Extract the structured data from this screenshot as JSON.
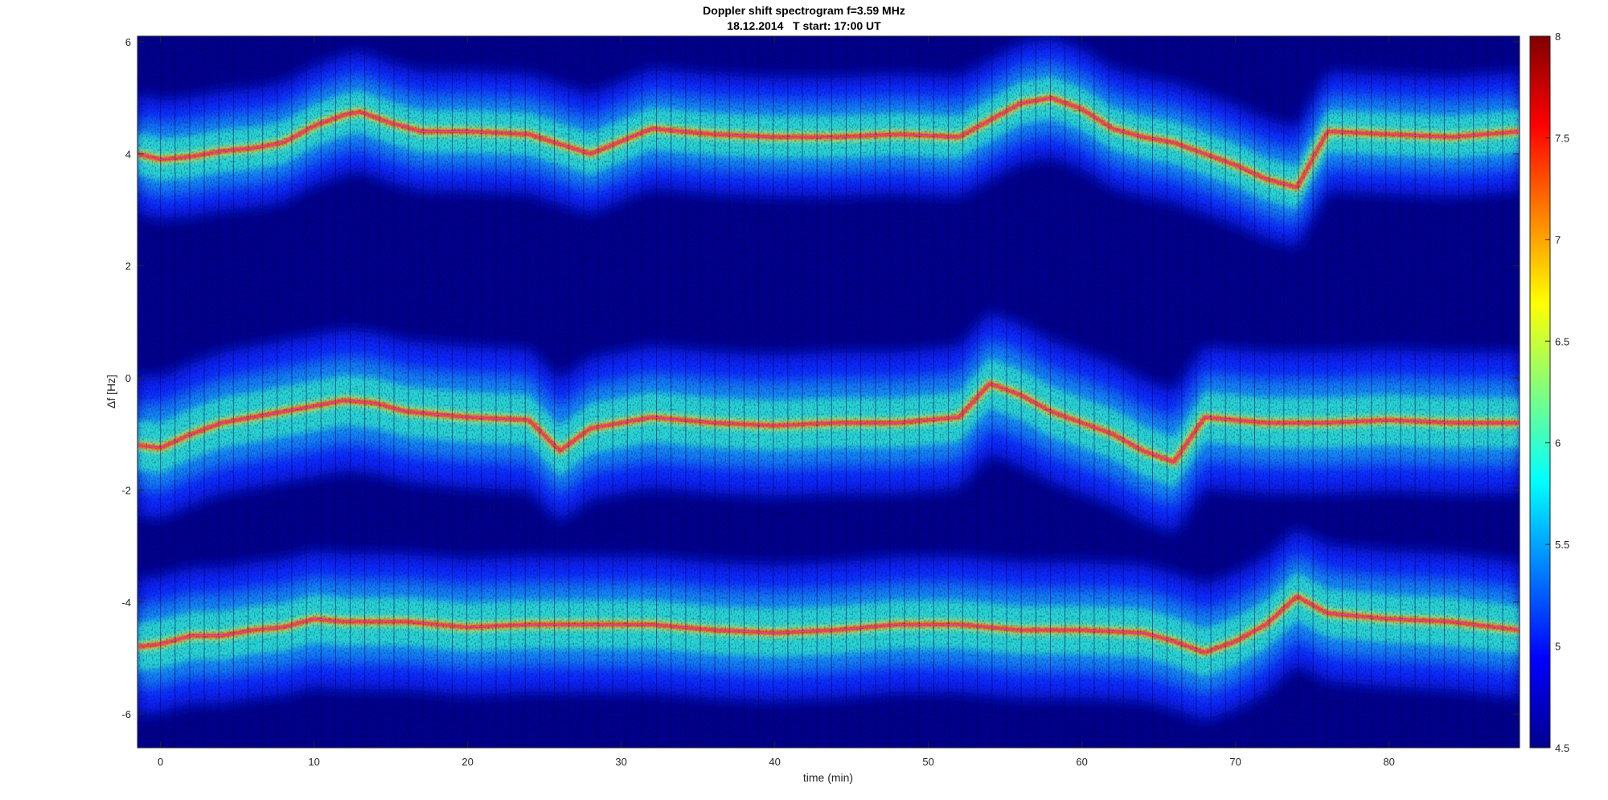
{
  "chart_data": {
    "type": "heatmap",
    "title": "Doppler shift spectrogram f=3.59 MHz",
    "subtitle": "18.12.2014   T start: 17:00 UT",
    "xlabel": "time (min)",
    "ylabel": "Δf [Hz]",
    "xlim": [
      -1.5,
      88.5
    ],
    "ylim": [
      -6.6,
      6.1
    ],
    "x_ticks": [
      0,
      10,
      20,
      30,
      40,
      50,
      60,
      70,
      80
    ],
    "y_ticks": [
      6,
      4,
      2,
      0,
      -2,
      -4,
      -6
    ],
    "colorbar": {
      "colormap": "jet",
      "range": [
        4.5,
        8
      ],
      "ticks": [
        8,
        7.5,
        7,
        6.5,
        6,
        5.5,
        5,
        4.5
      ]
    },
    "traces": [
      {
        "band": "upper",
        "x": [
          -1.5,
          0,
          2,
          4,
          6,
          8,
          10,
          12,
          13,
          15,
          17,
          20,
          24,
          28,
          32,
          36,
          40,
          44,
          48,
          52,
          54,
          56,
          58,
          60,
          62,
          64,
          66,
          68,
          70,
          72,
          74,
          76,
          80,
          84,
          88.5
        ],
        "y": [
          4.0,
          3.9,
          3.95,
          4.05,
          4.1,
          4.2,
          4.5,
          4.7,
          4.75,
          4.55,
          4.4,
          4.4,
          4.35,
          4.0,
          4.45,
          4.35,
          4.3,
          4.3,
          4.35,
          4.3,
          4.6,
          4.9,
          5.0,
          4.8,
          4.45,
          4.3,
          4.2,
          4.0,
          3.8,
          3.55,
          3.4,
          4.4,
          4.35,
          4.3,
          4.4
        ]
      },
      {
        "band": "middle",
        "x": [
          -1.5,
          0,
          2,
          4,
          6,
          8,
          10,
          12,
          14,
          16,
          20,
          24,
          26,
          28,
          32,
          36,
          40,
          44,
          48,
          52,
          54,
          56,
          58,
          60,
          62,
          64,
          66,
          68,
          70,
          72,
          76,
          80,
          84,
          88.5
        ],
        "y": [
          -1.2,
          -1.25,
          -1.0,
          -0.8,
          -0.7,
          -0.6,
          -0.5,
          -0.4,
          -0.45,
          -0.6,
          -0.7,
          -0.75,
          -1.3,
          -0.9,
          -0.7,
          -0.8,
          -0.85,
          -0.8,
          -0.8,
          -0.7,
          -0.1,
          -0.3,
          -0.6,
          -0.8,
          -1.0,
          -1.3,
          -1.5,
          -0.7,
          -0.75,
          -0.8,
          -0.8,
          -0.75,
          -0.8,
          -0.8
        ]
      },
      {
        "band": "lower",
        "x": [
          -1.5,
          0,
          2,
          4,
          6,
          8,
          10,
          12,
          16,
          20,
          24,
          28,
          32,
          36,
          40,
          44,
          48,
          52,
          56,
          60,
          64,
          66,
          68,
          70,
          72,
          74,
          76,
          80,
          84,
          88.5
        ],
        "y": [
          -4.8,
          -4.75,
          -4.6,
          -4.6,
          -4.5,
          -4.45,
          -4.3,
          -4.35,
          -4.35,
          -4.45,
          -4.4,
          -4.4,
          -4.4,
          -4.5,
          -4.55,
          -4.5,
          -4.4,
          -4.4,
          -4.5,
          -4.5,
          -4.55,
          -4.7,
          -4.9,
          -4.7,
          -4.4,
          -3.9,
          -4.2,
          -4.3,
          -4.35,
          -4.5
        ]
      }
    ],
    "grid": false
  }
}
